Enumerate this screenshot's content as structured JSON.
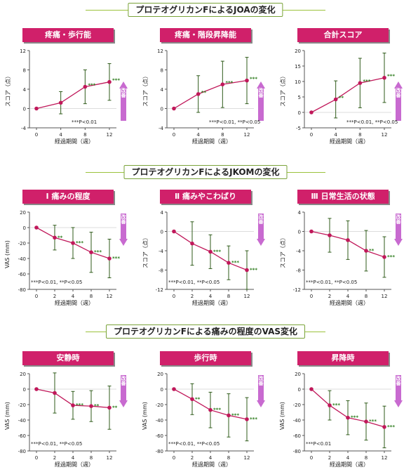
{
  "sections": [
    {
      "title": "プロテオグリカンFによるJOAの変化"
    },
    {
      "title": "プロテオグリカンFによるJKOMの変化"
    },
    {
      "title": "プロテオグリカンFによる痛みの程度のVAS変化"
    }
  ],
  "colors": {
    "title_bg": "#d0206a",
    "line": "#c0185a",
    "error_bar": "#2f5b1a",
    "rule": "#9cc23c",
    "arrow": "#c86ad0",
    "stars": "#2a7a1a"
  },
  "chart_data": [
    {
      "type": "line",
      "title": "疼痛・歩行能",
      "xlabel": "経過期間（週）",
      "ylabel": "スコア（点）",
      "x": [
        0,
        4,
        8,
        12
      ],
      "y": [
        0,
        1.2,
        4.5,
        5.5
      ],
      "err": [
        0,
        2.3,
        3.5,
        3.8
      ],
      "stars": [
        "",
        "",
        "***",
        "***"
      ],
      "ylim": [
        -4,
        12
      ],
      "yticks": [
        -4,
        0,
        4,
        8,
        12
      ],
      "xticks": [
        0,
        4,
        8,
        12
      ],
      "note": "***P<0.01",
      "badge": "改善",
      "direction": "up"
    },
    {
      "type": "line",
      "title": "疼痛・階段昇降能",
      "xlabel": "経過期間（週）",
      "ylabel": "スコア（点）",
      "x": [
        0,
        4,
        8,
        12
      ],
      "y": [
        0,
        3,
        5,
        5.8
      ],
      "err": [
        0,
        3.8,
        4.8,
        4.8
      ],
      "stars": [
        "",
        "**",
        "***",
        "***"
      ],
      "ylim": [
        -4,
        12
      ],
      "yticks": [
        -4,
        0,
        4,
        8,
        12
      ],
      "xticks": [
        0,
        4,
        8,
        12
      ],
      "note": "***P<0.01, **P<0.05",
      "badge": "改善",
      "direction": "up"
    },
    {
      "type": "line",
      "title": "合計スコア",
      "xlabel": "経過期間（週）",
      "ylabel": "スコア（点）",
      "x": [
        0,
        4,
        8,
        12
      ],
      "y": [
        0,
        4.2,
        9.5,
        11.2
      ],
      "err": [
        0,
        6,
        8,
        8
      ],
      "stars": [
        "",
        "**",
        "***",
        "***"
      ],
      "ylim": [
        -5,
        20
      ],
      "yticks": [
        -5,
        0,
        5,
        10,
        15,
        20
      ],
      "xticks": [
        0,
        4,
        8,
        12
      ],
      "note": "***P<0.01, **P<0.05",
      "badge": "改善",
      "direction": "up"
    },
    {
      "type": "line",
      "title": "Ⅰ 痛みの程度",
      "xlabel": "経過期間（週）",
      "ylabel": "VAS (mm)",
      "x": [
        0,
        2,
        4,
        8,
        12
      ],
      "y": [
        0,
        -13,
        -20,
        -32,
        -40
      ],
      "err": [
        0,
        16,
        20,
        26,
        25
      ],
      "stars": [
        "",
        "**",
        "***",
        "***",
        "***"
      ],
      "ylim": [
        -80,
        20
      ],
      "yticks": [
        -80,
        -60,
        -40,
        -20,
        0,
        20
      ],
      "xticks": [
        0,
        2,
        4,
        8,
        12
      ],
      "note": "***P<0.01, **P<0.05",
      "badge": "改善",
      "direction": "down"
    },
    {
      "type": "line",
      "title": "Ⅱ 痛みやこわばり",
      "xlabel": "経過期間（週）",
      "ylabel": "スコア（点）",
      "x": [
        0,
        2,
        4,
        8,
        12
      ],
      "y": [
        0,
        -2.5,
        -4.2,
        -6.5,
        -8
      ],
      "err": [
        0,
        4.5,
        3.5,
        3.5,
        4
      ],
      "stars": [
        "",
        "",
        "***",
        "***",
        "***"
      ],
      "ylim": [
        -12,
        4
      ],
      "yticks": [
        -12,
        -8,
        -4,
        0,
        4
      ],
      "xticks": [
        0,
        2,
        4,
        8,
        12
      ],
      "note": "***P<0.01, **P<0.05",
      "badge": "改善",
      "direction": "down"
    },
    {
      "type": "line",
      "title": "Ⅲ 日常生活の状態",
      "xlabel": "経過期間（週）",
      "ylabel": "スコア（点）",
      "x": [
        0,
        2,
        4,
        8,
        12
      ],
      "y": [
        0,
        -0.8,
        -1.8,
        -4,
        -5.3
      ],
      "err": [
        0,
        3.5,
        4,
        4.2,
        4.2
      ],
      "stars": [
        "",
        "",
        "",
        "**",
        "***"
      ],
      "ylim": [
        -12,
        4
      ],
      "yticks": [
        -12,
        -8,
        -4,
        0,
        4
      ],
      "xticks": [
        0,
        2,
        4,
        8,
        12
      ],
      "note": "***P<0.01, **P<0.05",
      "badge": "改善",
      "direction": "down"
    },
    {
      "type": "line",
      "title": "安静時",
      "xlabel": "経過期間（週）",
      "ylabel": "VAS (mm)",
      "x": [
        0,
        2,
        4,
        8,
        12
      ],
      "y": [
        0,
        -5,
        -21,
        -22,
        -24
      ],
      "err": [
        0,
        26,
        18,
        20,
        28
      ],
      "stars": [
        "",
        "",
        "***",
        "**",
        "**"
      ],
      "ylim": [
        -80,
        20
      ],
      "yticks": [
        -80,
        -60,
        -40,
        -20,
        0,
        20
      ],
      "xticks": [
        0,
        2,
        4,
        8,
        12
      ],
      "note": "***P<0.01, **P<0.05",
      "badge": "改善",
      "direction": "down"
    },
    {
      "type": "line",
      "title": "歩行時",
      "xlabel": "経過期間（週）",
      "ylabel": "VAS (mm)",
      "x": [
        0,
        2,
        4,
        8,
        12
      ],
      "y": [
        0,
        -13,
        -27,
        -34,
        -39
      ],
      "err": [
        0,
        20,
        23,
        28,
        28
      ],
      "stars": [
        "",
        "**",
        "***",
        "***",
        "***"
      ],
      "ylim": [
        -80,
        20
      ],
      "yticks": [
        -80,
        -60,
        -40,
        -20,
        0,
        20
      ],
      "xticks": [
        0,
        2,
        4,
        8,
        12
      ],
      "note": "***P<0.01, **P<0.05",
      "badge": "改善",
      "direction": "down"
    },
    {
      "type": "line",
      "title": "昇降時",
      "xlabel": "経過期間（週）",
      "ylabel": "VAS (mm)",
      "x": [
        0,
        2,
        4,
        8,
        12
      ],
      "y": [
        0,
        -21,
        -37,
        -42,
        -49
      ],
      "err": [
        0,
        19,
        22,
        24,
        27
      ],
      "stars": [
        "",
        "***",
        "***",
        "***",
        "***"
      ],
      "ylim": [
        -80,
        20
      ],
      "yticks": [
        -80,
        -60,
        -40,
        -20,
        0,
        20
      ],
      "xticks": [
        0,
        2,
        4,
        8,
        12
      ],
      "note": "***P<0.01",
      "badge": "改善",
      "direction": "down"
    }
  ]
}
